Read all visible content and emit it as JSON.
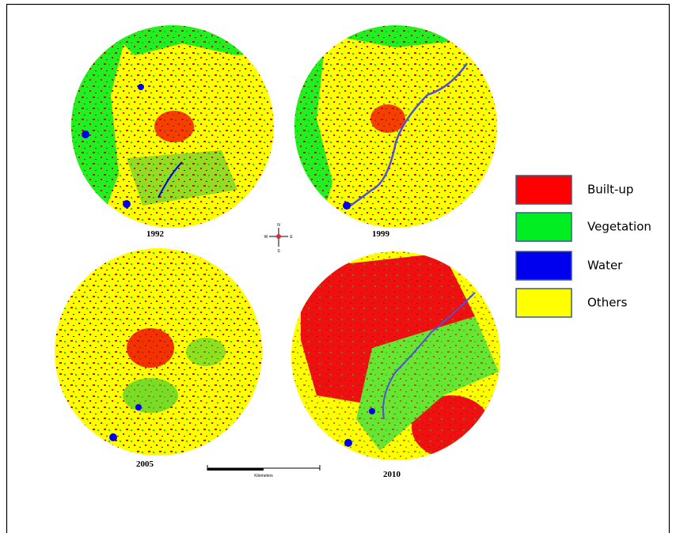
{
  "maps": [
    {
      "year": "1992"
    },
    {
      "year": "1999"
    },
    {
      "year": "2005"
    },
    {
      "year": "2010"
    }
  ],
  "compass": {
    "north": "N",
    "west": "W",
    "east": "E",
    "south": "S"
  },
  "scale_bar": {
    "unit": "Kilometers"
  },
  "legend": [
    {
      "label": "Built-up",
      "color": "#ff0000"
    },
    {
      "label": "Vegetation",
      "color": "#00ee22"
    },
    {
      "label": "Water",
      "color": "#0000ee"
    },
    {
      "label": "Others",
      "color": "#ffff00"
    }
  ]
}
